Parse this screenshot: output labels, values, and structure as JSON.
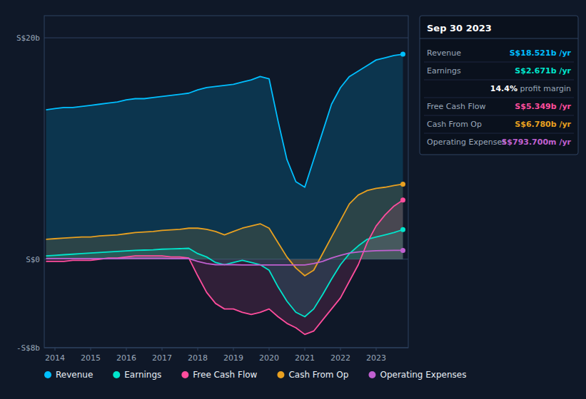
{
  "chart_data": {
    "type": "area",
    "x": [
      2013.75,
      2014.0,
      2014.25,
      2014.5,
      2014.75,
      2015.0,
      2015.25,
      2015.5,
      2015.75,
      2016.0,
      2016.25,
      2016.5,
      2016.75,
      2017.0,
      2017.25,
      2017.5,
      2017.75,
      2018.0,
      2018.25,
      2018.5,
      2018.75,
      2019.0,
      2019.25,
      2019.5,
      2019.75,
      2020.0,
      2020.25,
      2020.5,
      2020.75,
      2021.0,
      2021.25,
      2021.5,
      2021.75,
      2022.0,
      2022.25,
      2022.5,
      2022.75,
      2023.0,
      2023.25,
      2023.5,
      2023.75
    ],
    "series": [
      {
        "name": "Revenue",
        "color": "#00bfff",
        "values": [
          13.5,
          13.6,
          13.7,
          13.7,
          13.8,
          13.9,
          14.0,
          14.1,
          14.2,
          14.4,
          14.5,
          14.5,
          14.6,
          14.7,
          14.8,
          14.9,
          15.0,
          15.3,
          15.5,
          15.6,
          15.7,
          15.8,
          16.0,
          16.2,
          16.5,
          16.3,
          12.5,
          9.0,
          7.0,
          6.5,
          9.0,
          11.5,
          14.0,
          15.5,
          16.5,
          17.0,
          17.5,
          18.0,
          18.2,
          18.4,
          18.521
        ]
      },
      {
        "name": "Earnings",
        "color": "#00e5cc",
        "values": [
          0.3,
          0.35,
          0.4,
          0.45,
          0.5,
          0.55,
          0.6,
          0.65,
          0.7,
          0.75,
          0.8,
          0.82,
          0.85,
          0.9,
          0.92,
          0.95,
          0.98,
          0.5,
          0.2,
          -0.3,
          -0.5,
          -0.3,
          -0.1,
          -0.3,
          -0.5,
          -1.0,
          -2.5,
          -3.8,
          -4.8,
          -5.2,
          -4.5,
          -3.2,
          -1.8,
          -0.5,
          0.5,
          1.2,
          1.8,
          2.0,
          2.2,
          2.4,
          2.671
        ]
      },
      {
        "name": "Free Cash Flow",
        "color": "#ff4d9d",
        "values": [
          -0.2,
          -0.2,
          -0.2,
          -0.1,
          -0.1,
          -0.1,
          0.0,
          0.1,
          0.1,
          0.2,
          0.3,
          0.3,
          0.3,
          0.3,
          0.2,
          0.2,
          0.1,
          -1.5,
          -3.0,
          -4.0,
          -4.5,
          -4.5,
          -4.8,
          -5.0,
          -4.8,
          -4.5,
          -5.2,
          -5.8,
          -6.2,
          -6.8,
          -6.5,
          -5.5,
          -4.5,
          -3.5,
          -2.0,
          -0.5,
          1.5,
          3.0,
          4.0,
          4.8,
          5.349
        ]
      },
      {
        "name": "Cash From Op",
        "color": "#e8a020",
        "values": [
          1.8,
          1.85,
          1.9,
          1.95,
          2.0,
          2.0,
          2.1,
          2.15,
          2.2,
          2.3,
          2.4,
          2.45,
          2.5,
          2.6,
          2.65,
          2.7,
          2.8,
          2.8,
          2.7,
          2.5,
          2.2,
          2.5,
          2.8,
          3.0,
          3.2,
          2.8,
          1.5,
          0.2,
          -0.8,
          -1.5,
          -1.0,
          0.5,
          2.0,
          3.5,
          5.0,
          5.8,
          6.2,
          6.4,
          6.5,
          6.65,
          6.78
        ]
      },
      {
        "name": "Operating Expenses",
        "color": "#c060d0",
        "type": "line",
        "values": [
          0.05,
          0.05,
          0.05,
          0.05,
          0.05,
          0.05,
          0.05,
          0.05,
          0.05,
          0.08,
          0.08,
          0.08,
          0.08,
          0.08,
          0.06,
          0.06,
          0.06,
          -0.2,
          -0.4,
          -0.5,
          -0.5,
          -0.5,
          -0.52,
          -0.52,
          -0.52,
          -0.52,
          -0.52,
          -0.52,
          -0.52,
          -0.52,
          -0.4,
          -0.2,
          0.1,
          0.35,
          0.55,
          0.65,
          0.72,
          0.76,
          0.78,
          0.79,
          0.7937
        ]
      }
    ],
    "xlim": [
      2013.7,
      2023.9
    ],
    "xticks": [
      2014,
      2015,
      2016,
      2017,
      2018,
      2019,
      2020,
      2021,
      2022,
      2023
    ],
    "ylim": [
      -8,
      22
    ],
    "yticks": [
      {
        "value": -8,
        "label": "-S$8b"
      },
      {
        "value": 0,
        "label": "S$0"
      },
      {
        "value": 20,
        "label": "S$20b"
      }
    ],
    "grid": true,
    "legend": "bottom",
    "annotations": [
      {
        "text": "Sep 30 2023"
      },
      {
        "label": "Revenue",
        "text": "S$18.521b /yr",
        "color": "#00bfff"
      },
      {
        "label": "Earnings",
        "text": "S$2.671b /yr",
        "color": "#00e5cc"
      },
      {
        "text": "14.4% profit margin",
        "color": "white"
      },
      {
        "label": "Free Cash Flow",
        "text": "S$5.349b /yr",
        "color": "#ff4d9d"
      },
      {
        "label": "Cash From Op",
        "text": "S$6.780b /yr",
        "color": "#e8a020"
      },
      {
        "label": "Operating Expenses",
        "text": "S$793.700m /yr",
        "color": "#c060d0"
      }
    ]
  }
}
